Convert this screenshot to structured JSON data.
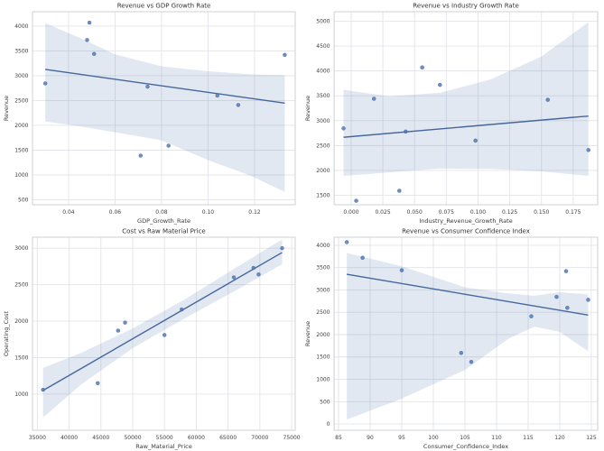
{
  "figure": {
    "background": "#ffffff",
    "rows": 2,
    "cols": 2
  },
  "style": {
    "point_color": "#4c72b0",
    "point_opacity": 0.8,
    "line_color": "#44679b",
    "band_color": "#4c72b0",
    "band_opacity": 0.16,
    "grid_color": "#e2e4e9",
    "spine_color": "#cdd0d6",
    "title_color": "#303030",
    "label_color": "#3a3a3a",
    "tick_color": "#404040"
  },
  "chart_data": [
    {
      "name": "revenue-vs-gdp-growth-rate",
      "type": "scatter",
      "title": "Revenue vs GDP Growth Rate",
      "xlabel": "GDP_Growth_Rate",
      "ylabel": "Revenue",
      "x": [
        0.03,
        0.048,
        0.049,
        0.051,
        0.071,
        0.074,
        0.083,
        0.104,
        0.113,
        0.133
      ],
      "y": [
        2845,
        3720,
        4070,
        3440,
        1390,
        2780,
        1590,
        2600,
        2410,
        3420
      ],
      "xlim": [
        0.0245,
        0.1375
      ],
      "ylim": [
        400,
        4290
      ],
      "xticks": {
        "values": [
          0.04,
          0.06,
          0.08,
          0.1,
          0.12
        ],
        "labels": [
          "0.04",
          "0.06",
          "0.08",
          "0.10",
          "0.12"
        ]
      },
      "yticks": {
        "values": [
          500,
          1000,
          1500,
          2000,
          2500,
          3000,
          3500,
          4000
        ],
        "labels": [
          "500",
          "1000",
          "1500",
          "2000",
          "2500",
          "3000",
          "3500",
          "4000"
        ]
      },
      "grid": true,
      "regression_line": true,
      "ci_band": {
        "x": [
          0.03,
          0.045,
          0.06,
          0.08,
          0.1,
          0.118,
          0.133
        ],
        "upper": [
          4060,
          3760,
          3430,
          3190,
          3090,
          3030,
          3010
        ],
        "lower": [
          2080,
          1980,
          1860,
          1700,
          1300,
          990,
          660
        ]
      }
    },
    {
      "name": "revenue-vs-industry-growth-rate",
      "type": "scatter",
      "title": "Revenue vs Industry Growth Rate",
      "xlabel": "Industry_Revenue_Growth_Rate",
      "ylabel": "Revenue",
      "x": [
        -0.006,
        0.004,
        0.018,
        0.038,
        0.043,
        0.056,
        0.07,
        0.098,
        0.155,
        0.187
      ],
      "y": [
        2845,
        1390,
        3440,
        1590,
        2780,
        4070,
        3720,
        2600,
        3420,
        2410
      ],
      "xlim": [
        -0.0134,
        0.1943
      ],
      "ylim": [
        1310,
        5190
      ],
      "xticks": {
        "values": [
          0.0,
          0.025,
          0.05,
          0.075,
          0.1,
          0.125,
          0.15,
          0.175
        ],
        "labels": [
          "0.000",
          "0.025",
          "0.050",
          "0.075",
          "0.100",
          "0.125",
          "0.150",
          "0.175"
        ]
      },
      "yticks": {
        "values": [
          1500,
          2000,
          2500,
          3000,
          3500,
          4000,
          4500,
          5000
        ],
        "labels": [
          "1500",
          "2000",
          "2500",
          "3000",
          "3500",
          "4000",
          "4500",
          "5000"
        ]
      },
      "grid": true,
      "regression_line": true,
      "ci_band": {
        "x": [
          -0.006,
          0.03,
          0.07,
          0.11,
          0.15,
          0.187
        ],
        "upper": [
          3620,
          3490,
          3560,
          3830,
          4290,
          4980
        ],
        "lower": [
          1890,
          1960,
          2040,
          2030,
          1980,
          1890
        ]
      }
    },
    {
      "name": "cost-vs-raw-material-price",
      "type": "scatter",
      "title": "Cost vs Raw Material Price",
      "xlabel": "Raw_Material_Price",
      "ylabel": "Operating_Cost",
      "x": [
        35900,
        44500,
        47700,
        48800,
        55000,
        57700,
        65900,
        69000,
        69800,
        73500
      ],
      "y": [
        1060,
        1150,
        1870,
        1980,
        1810,
        2160,
        2600,
        2730,
        2640,
        3000
      ],
      "xlim": [
        34240,
        75560
      ],
      "ylim": [
        505,
        3150
      ],
      "xticks": {
        "values": [
          35000,
          40000,
          45000,
          50000,
          55000,
          60000,
          65000,
          70000,
          75000
        ],
        "labels": [
          "35000",
          "40000",
          "45000",
          "50000",
          "55000",
          "60000",
          "65000",
          "70000",
          "75000"
        ]
      },
      "yticks": {
        "values": [
          1000,
          1500,
          2000,
          2500,
          3000
        ],
        "labels": [
          "1000",
          "1500",
          "2000",
          "2500",
          "3000"
        ]
      },
      "grid": true,
      "regression_line": true,
      "ci_band": {
        "x": [
          35900,
          42000,
          50000,
          58000,
          66000,
          73500
        ],
        "upper": [
          1360,
          1570,
          1900,
          2290,
          2720,
          3120
        ],
        "lower": [
          680,
          1140,
          1630,
          2030,
          2410,
          2780
        ]
      }
    },
    {
      "name": "revenue-vs-consumer-confidence-index",
      "type": "scatter",
      "title": "Revenue vs Consumer Confidence Index",
      "xlabel": "Consumer_Confidence_Index",
      "ylabel": "Revenue",
      "x": [
        86.3,
        88.8,
        95.0,
        104.4,
        106.0,
        115.5,
        119.5,
        121.0,
        121.2,
        124.5
      ],
      "y": [
        4070,
        3720,
        3440,
        1590,
        1390,
        2410,
        2845,
        3420,
        2600,
        2780
      ],
      "xlim": [
        84.3,
        126.0
      ],
      "ylim": [
        -140,
        4180
      ],
      "xticks": {
        "values": [
          85,
          90,
          95,
          100,
          105,
          110,
          115,
          120,
          125
        ],
        "labels": [
          "85",
          "90",
          "95",
          "100",
          "105",
          "110",
          "115",
          "120",
          "125"
        ]
      },
      "yticks": {
        "values": [
          0,
          500,
          1000,
          1500,
          2000,
          2500,
          3000,
          3500,
          4000
        ],
        "labels": [
          "0",
          "500",
          "1000",
          "1500",
          "2000",
          "2500",
          "3000",
          "3500",
          "4000"
        ]
      },
      "grid": true,
      "regression_line": true,
      "ci_band": {
        "x": [
          86.3,
          95,
          105,
          112,
          116,
          120,
          124.5
        ],
        "upper": [
          3830,
          3530,
          3060,
          2920,
          2870,
          2950,
          2900
        ],
        "lower": [
          100,
          570,
          1210,
          1920,
          2180,
          2060,
          1630
        ]
      }
    }
  ]
}
